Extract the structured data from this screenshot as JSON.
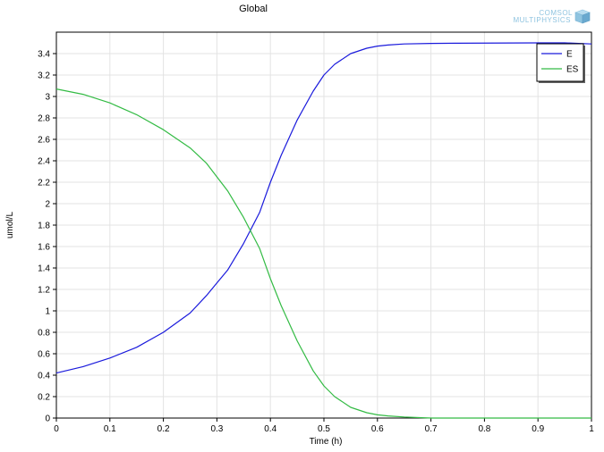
{
  "chart_data": {
    "type": "line",
    "title": "Global",
    "xlabel": "Time (h)",
    "ylabel": "umol/L",
    "xlim": [
      0,
      1
    ],
    "ylim": [
      0,
      3.6
    ],
    "xticks": [
      "0",
      "0.1",
      "0.2",
      "0.3",
      "0.4",
      "0.5",
      "0.6",
      "0.7",
      "0.8",
      "0.9",
      "1"
    ],
    "yticks": [
      "0",
      "0.2",
      "0.4",
      "0.6",
      "0.8",
      "1",
      "1.2",
      "1.4",
      "1.6",
      "1.8",
      "2",
      "2.2",
      "2.4",
      "2.6",
      "2.8",
      "3",
      "3.2",
      "3.4"
    ],
    "grid": true,
    "legend_position": "top-right",
    "series": [
      {
        "name": "E",
        "color": "#1a1adc",
        "x": [
          0,
          0.05,
          0.1,
          0.15,
          0.2,
          0.25,
          0.28,
          0.3,
          0.32,
          0.35,
          0.38,
          0.4,
          0.42,
          0.45,
          0.48,
          0.5,
          0.52,
          0.55,
          0.58,
          0.6,
          0.62,
          0.65,
          0.7,
          0.75,
          0.8,
          0.85,
          0.9,
          0.95,
          1.0
        ],
        "values": [
          0.42,
          0.48,
          0.56,
          0.66,
          0.8,
          0.98,
          1.14,
          1.26,
          1.38,
          1.63,
          1.92,
          2.2,
          2.45,
          2.78,
          3.05,
          3.2,
          3.3,
          3.4,
          3.45,
          3.47,
          3.48,
          3.49,
          3.495,
          3.497,
          3.498,
          3.499,
          3.5,
          3.5,
          3.49
        ]
      },
      {
        "name": "ES",
        "color": "#33bb44",
        "x": [
          0,
          0.05,
          0.1,
          0.15,
          0.2,
          0.25,
          0.28,
          0.3,
          0.32,
          0.35,
          0.38,
          0.4,
          0.42,
          0.45,
          0.48,
          0.5,
          0.52,
          0.55,
          0.58,
          0.6,
          0.62,
          0.65,
          0.7,
          0.75,
          0.8,
          0.85,
          0.9,
          0.95,
          1.0
        ],
        "values": [
          3.07,
          3.02,
          2.94,
          2.83,
          2.69,
          2.52,
          2.38,
          2.25,
          2.12,
          1.87,
          1.58,
          1.3,
          1.05,
          0.72,
          0.44,
          0.3,
          0.2,
          0.1,
          0.05,
          0.03,
          0.02,
          0.01,
          0.0,
          0.0,
          0.0,
          0.0,
          0.0,
          0.0,
          0.0
        ]
      }
    ]
  },
  "logo": {
    "line1": "COMSOL",
    "line2": "MULTIPHYSICS",
    "color": "#8fc4e0",
    "icon": "cube-icon"
  }
}
